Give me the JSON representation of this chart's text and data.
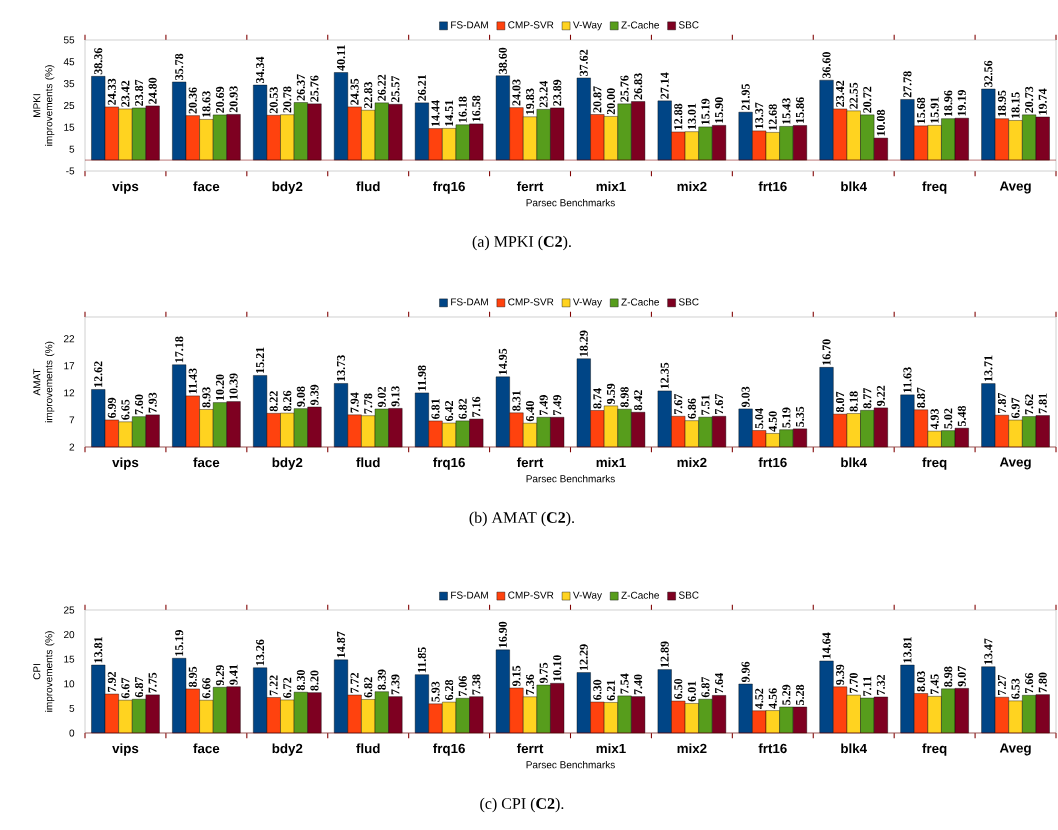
{
  "chart_data": [
    {
      "type": "bar",
      "ylabel": "MPKI improvements (%)",
      "xlabel": "Parsec Benchmarks",
      "categories": [
        "vips",
        "face",
        "bdy2",
        "flud",
        "frq16",
        "ferrt",
        "mix1",
        "mix2",
        "frt16",
        "blk4",
        "freq",
        "Aveg"
      ],
      "ylim": [
        -5,
        55
      ],
      "yticks": [
        -5,
        5,
        15,
        25,
        35,
        45,
        55
      ],
      "legend": "top",
      "ref_lines": [
        {
          "axis": "y",
          "value": 0,
          "color": "#800000"
        }
      ],
      "annotations": [
        "(a)  MPKI (**C2**)."
      ],
      "series": [
        {
          "name": "FS-DAM",
          "color": "#004586",
          "values": [
            38.36,
            35.78,
            34.34,
            40.11,
            26.21,
            38.6,
            37.62,
            27.14,
            21.95,
            36.6,
            27.78,
            32.56
          ],
          "value_labels": [
            "38.36",
            "35.78",
            "34.34",
            "40.11",
            "26.21",
            "38.60",
            "37.62",
            "27.14",
            "21.95",
            "36.60",
            "27.78",
            "32.56"
          ]
        },
        {
          "name": "CMP-SVR",
          "color": "#ff420e",
          "values": [
            24.33,
            20.36,
            20.53,
            24.35,
            14.44,
            24.03,
            20.87,
            12.88,
            13.37,
            23.42,
            15.68,
            18.95
          ],
          "value_labels": [
            "24.33",
            "20.36",
            "20.53",
            "24.35",
            "14.44",
            "24.03",
            "20.87",
            "12.88",
            "13.37",
            "23.42",
            "15.68",
            "18.95"
          ]
        },
        {
          "name": "V-Way",
          "color": "#ffd320",
          "values": [
            23.42,
            18.63,
            20.78,
            22.83,
            14.51,
            19.83,
            20.0,
            13.01,
            12.68,
            22.55,
            15.91,
            18.15
          ],
          "value_labels": [
            "23.42",
            "18.63",
            "20.78",
            "22.83",
            "14.51",
            "19.83",
            "20.00",
            "13.01",
            "12.68",
            "22.55",
            "15.91",
            "18.15"
          ]
        },
        {
          "name": "Z-Cache",
          "color": "#579d1c",
          "values": [
            23.87,
            20.69,
            26.37,
            26.22,
            16.18,
            23.24,
            25.76,
            15.19,
            15.43,
            20.72,
            18.96,
            20.73
          ],
          "value_labels": [
            "23.87",
            "20.69",
            "26.37",
            "26.22",
            "16.18",
            "23.24",
            "25.76",
            "15.19",
            "15.43",
            "20.72",
            "18.96",
            "20.73"
          ]
        },
        {
          "name": "SBC",
          "color": "#7e0021",
          "values": [
            24.8,
            20.93,
            25.76,
            25.57,
            16.58,
            23.89,
            26.83,
            15.9,
            15.86,
            10.08,
            19.19,
            19.74
          ],
          "value_labels": [
            "24.80",
            "20.93",
            "25.76",
            "25.57",
            "16.58",
            "23.89",
            "26.83",
            "15.90",
            "15.86",
            "10.08",
            "19.19",
            "19.74"
          ]
        }
      ]
    },
    {
      "type": "bar",
      "ylabel": "AMAT improvements (%)",
      "xlabel": "Parsec Benchmarks",
      "categories": [
        "vips",
        "face",
        "bdy2",
        "flud",
        "frq16",
        "ferrt",
        "mix1",
        "mix2",
        "frt16",
        "blk4",
        "freq",
        "Aveg"
      ],
      "ylim": [
        2,
        26
      ],
      "yticks": [
        2,
        7,
        12,
        17,
        22
      ],
      "legend": "top",
      "annotations": [
        "(b)  AMAT (**C2**)."
      ],
      "series": [
        {
          "name": "FS-DAM",
          "color": "#004586",
          "values": [
            12.62,
            17.18,
            15.21,
            13.73,
            11.98,
            14.95,
            18.29,
            12.35,
            9.03,
            16.7,
            11.63,
            13.71
          ],
          "value_labels": [
            "12.62",
            "17.18",
            "15.21",
            "13.73",
            "11.98",
            "14.95",
            "18.29",
            "12.35",
            "9.03",
            "16.70",
            "11.63",
            "13.71"
          ]
        },
        {
          "name": "CMP-SVR",
          "color": "#ff420e",
          "values": [
            6.99,
            11.43,
            8.22,
            7.94,
            6.81,
            8.31,
            8.74,
            7.67,
            5.04,
            8.07,
            8.87,
            7.87
          ],
          "value_labels": [
            "6.99",
            "11.43",
            "8.22",
            "7.94",
            "6.81",
            "8.31",
            "8.74",
            "7.67",
            "5.04",
            "8.07",
            "8.87",
            "7.87"
          ]
        },
        {
          "name": "V-Way",
          "color": "#ffd320",
          "values": [
            6.65,
            8.93,
            8.26,
            7.78,
            6.42,
            6.4,
            9.59,
            6.86,
            4.5,
            8.18,
            4.93,
            6.97
          ],
          "value_labels": [
            "6.65",
            "8.93",
            "8.26",
            "7.78",
            "6.42",
            "6.40",
            "9.59",
            "6.86",
            "4.50",
            "8.18",
            "4.93",
            "6.97"
          ]
        },
        {
          "name": "Z-Cache",
          "color": "#579d1c",
          "values": [
            7.6,
            10.2,
            9.08,
            9.02,
            6.82,
            7.49,
            8.98,
            7.51,
            5.19,
            8.77,
            5.02,
            7.62
          ],
          "value_labels": [
            "7.60",
            "10.20",
            "9.08",
            "9.02",
            "6.82",
            "7.49",
            "8.98",
            "7.51",
            "5.19",
            "8.77",
            "5.02",
            "7.62"
          ]
        },
        {
          "name": "SBC",
          "color": "#7e0021",
          "values": [
            7.93,
            10.39,
            9.39,
            9.13,
            7.16,
            7.49,
            8.42,
            7.67,
            5.35,
            9.22,
            5.48,
            7.81
          ],
          "value_labels": [
            "7.93",
            "10.39",
            "9.39",
            "9.13",
            "7.16",
            "7.49",
            "8.42",
            "7.67",
            "5.35",
            "9.22",
            "5.48",
            "7.81"
          ]
        }
      ]
    },
    {
      "type": "bar",
      "ylabel": "CPI improvements (%)",
      "xlabel": "Parsec Benchmarks",
      "categories": [
        "vips",
        "face",
        "bdy2",
        "flud",
        "frq16",
        "ferrt",
        "mix1",
        "mix2",
        "frt16",
        "blk4",
        "freq",
        "Aveg"
      ],
      "ylim": [
        0,
        25
      ],
      "yticks": [
        0,
        5,
        10,
        15,
        20,
        25
      ],
      "legend": "top",
      "annotations": [
        "(c)  CPI (**C2**)."
      ],
      "series": [
        {
          "name": "FS-DAM",
          "color": "#004586",
          "values": [
            13.81,
            15.19,
            13.26,
            14.87,
            11.85,
            16.9,
            12.29,
            12.89,
            9.96,
            14.64,
            13.81,
            13.47
          ],
          "value_labels": [
            "13.81",
            "15.19",
            "13.26",
            "14.87",
            "11.85",
            "16.90",
            "12.29",
            "12.89",
            "9.96",
            "14.64",
            "13.81",
            "13.47"
          ]
        },
        {
          "name": "CMP-SVR",
          "color": "#ff420e",
          "values": [
            7.92,
            8.95,
            7.22,
            7.72,
            5.93,
            9.15,
            6.3,
            6.5,
            4.52,
            9.39,
            8.03,
            7.27
          ],
          "value_labels": [
            "7.92",
            "8.95",
            "7.22",
            "7.72",
            "5.93",
            "9.15",
            "6.30",
            "6.50",
            "4.52",
            "9.39",
            "8.03",
            "7.27"
          ]
        },
        {
          "name": "V-Way",
          "color": "#ffd320",
          "values": [
            6.67,
            6.66,
            6.72,
            6.82,
            6.28,
            7.36,
            6.21,
            6.01,
            4.56,
            7.7,
            7.45,
            6.53
          ],
          "value_labels": [
            "6.67",
            "6.66",
            "6.72",
            "6.82",
            "6.28",
            "7.36",
            "6.21",
            "6.01",
            "4.56",
            "7.70",
            "7.45",
            "6.53"
          ]
        },
        {
          "name": "Z-Cache",
          "color": "#579d1c",
          "values": [
            6.87,
            9.29,
            8.3,
            8.39,
            7.06,
            9.75,
            7.54,
            6.87,
            5.29,
            7.11,
            8.98,
            7.66
          ],
          "value_labels": [
            "6.87",
            "9.29",
            "8.30",
            "8.39",
            "7.06",
            "9.75",
            "7.54",
            "6.87",
            "5.29",
            "7.11",
            "8.98",
            "7.66"
          ]
        },
        {
          "name": "SBC",
          "color": "#7e0021",
          "values": [
            7.75,
            9.41,
            8.2,
            7.39,
            7.38,
            10.1,
            7.4,
            7.64,
            5.28,
            7.32,
            9.07,
            7.8
          ],
          "value_labels": [
            "7.75",
            "9.41",
            "8.20",
            "7.39",
            "7.38",
            "10.10",
            "7.40",
            "7.64",
            "5.28",
            "7.32",
            "9.07",
            "7.80"
          ]
        }
      ]
    }
  ]
}
